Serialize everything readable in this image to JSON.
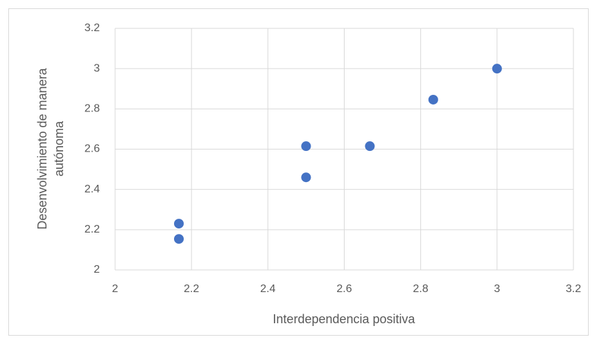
{
  "chart_data": {
    "type": "scatter",
    "xlabel": "Interdependencia positiva",
    "ylabel": [
      "Desenvolvimiento de manera",
      "autónoma"
    ],
    "x": [
      2.167,
      2.167,
      2.5,
      2.5,
      2.667,
      2.833,
      3
    ],
    "values": [
      2.23,
      2.154,
      2.615,
      2.46,
      2.615,
      2.846,
      3
    ],
    "color": "#4472c4",
    "xlim": [
      2,
      3.2
    ],
    "xticks": [
      2,
      2.2,
      2.4,
      2.6,
      2.8,
      3,
      3.2
    ],
    "ylim": [
      2,
      3.2
    ],
    "yticks": [
      2,
      2.2,
      2.4,
      2.6,
      2.8,
      3,
      3.2
    ],
    "grid": true
  }
}
